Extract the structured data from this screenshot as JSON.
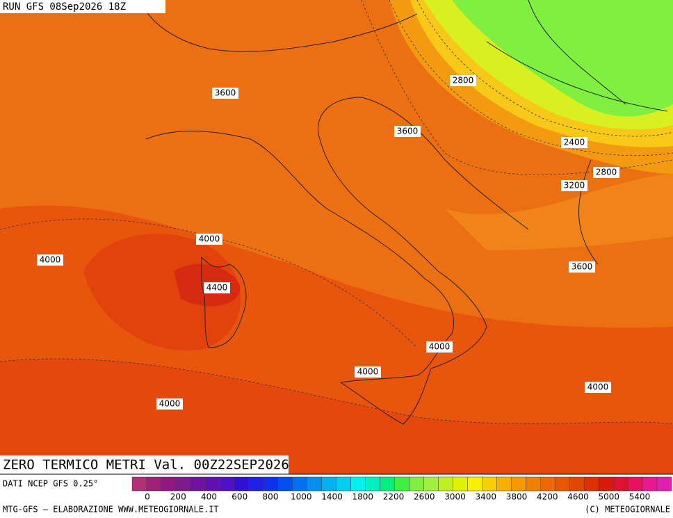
{
  "header": {
    "title": "RUN GFS 08Sep2026 18Z"
  },
  "contours": [
    {
      "label": "3600"
    },
    {
      "label": "2800"
    },
    {
      "label": "3600"
    },
    {
      "label": "2400"
    },
    {
      "label": "2800"
    },
    {
      "label": "3200"
    },
    {
      "label": "4000"
    },
    {
      "label": "4000"
    },
    {
      "label": "3600"
    },
    {
      "label": "4400"
    },
    {
      "label": "4000"
    },
    {
      "label": "4000"
    },
    {
      "label": "4000"
    },
    {
      "label": "4000"
    }
  ],
  "footer": {
    "field": "ZERO TERMICO METRI Val. 00Z22SEP2026",
    "source": "DATI NCEP GFS 0.25°",
    "credit": "MTG-GFS — ELABORAZIONE WWW.METEOGIORNALE.IT",
    "copyright": "(C) METEOGIORNALE"
  },
  "legend": {
    "labels": [
      "0",
      "200",
      "400",
      "600",
      "800",
      "1000",
      "1400",
      "1800",
      "2200",
      "2600",
      "3000",
      "3400",
      "3800",
      "4200",
      "4600",
      "5000",
      "5400"
    ],
    "colors": [
      "#b03078",
      "#a02078",
      "#901880",
      "#801890",
      "#7010a0",
      "#6010b0",
      "#5010c8",
      "#3010d8",
      "#2020e8",
      "#1030f0",
      "#0050f0",
      "#0070f0",
      "#0090f0",
      "#00b0f0",
      "#00d0f0",
      "#00f0f0",
      "#00f0c0",
      "#00f080",
      "#40f040",
      "#80f040",
      "#a0f040",
      "#c0f020",
      "#e0f000",
      "#f8f000",
      "#f8d000",
      "#f8b000",
      "#f89800",
      "#f08000",
      "#f06800",
      "#e85800",
      "#e04800",
      "#e03000",
      "#d81808",
      "#e01030",
      "#e81060",
      "#e81890",
      "#e020b0"
    ]
  }
}
